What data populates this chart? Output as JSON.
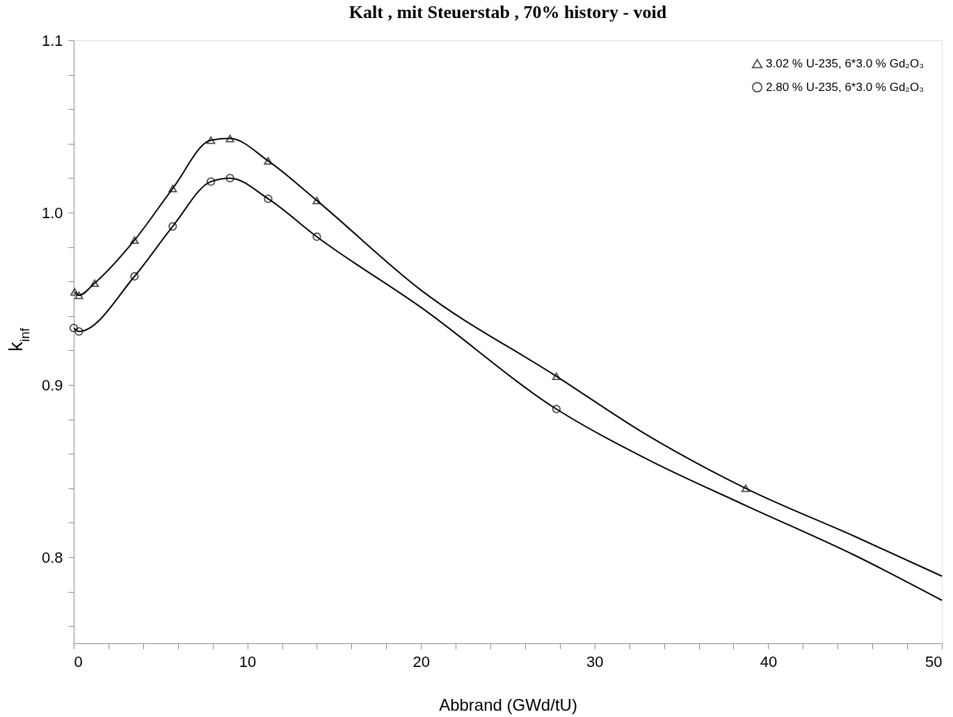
{
  "chart_data": {
    "type": "line",
    "title": "Kalt , mit Steuerstab , 70% history - void",
    "xlabel": "Abbrand (GWd/tU)",
    "ylabel": "k$_{inf}$",
    "xlim": [
      0,
      50
    ],
    "ylim": [
      0.75,
      1.1
    ],
    "xticks": [
      0,
      {
        "value": 2,
        "label": null
      },
      {
        "value": 4,
        "label": null
      },
      {
        "value": 6,
        "label": null
      },
      {
        "value": 8,
        "label": null
      },
      10,
      {
        "value": 12,
        "label": null
      },
      {
        "value": 14,
        "label": null
      },
      {
        "value": 16,
        "label": null
      },
      {
        "value": 18,
        "label": null
      },
      20,
      {
        "value": 22,
        "label": null
      },
      {
        "value": 24,
        "label": null
      },
      {
        "value": 26,
        "label": null
      },
      {
        "value": 28,
        "label": null
      },
      30,
      {
        "value": 32,
        "label": null
      },
      {
        "value": 34,
        "label": null
      },
      {
        "value": 36,
        "label": null
      },
      {
        "value": 38,
        "label": null
      },
      40,
      {
        "value": 42,
        "label": null
      },
      {
        "value": 44,
        "label": null
      },
      {
        "value": 46,
        "label": null
      },
      {
        "value": 48,
        "label": null
      },
      50
    ],
    "yticks": [
      {
        "value": 0.76,
        "label": null
      },
      {
        "value": 0.78,
        "label": null
      },
      0.8,
      {
        "value": 0.82,
        "label": null
      },
      {
        "value": 0.84,
        "label": null
      },
      {
        "value": 0.86,
        "label": null
      },
      {
        "value": 0.88,
        "label": null
      },
      0.9,
      {
        "value": 0.92,
        "label": null
      },
      {
        "value": 0.94,
        "label": null
      },
      {
        "value": 0.96,
        "label": null
      },
      {
        "value": 0.98,
        "label": null
      },
      {
        "value": 1,
        "label": "1.0"
      },
      {
        "value": 1.02,
        "label": null
      },
      {
        "value": 1.04,
        "label": null
      },
      {
        "value": 1.06,
        "label": null
      },
      {
        "value": 1.08,
        "label": null
      },
      1.1
    ],
    "grid": false,
    "legend": "top right",
    "line_style": "solid",
    "series": [
      {
        "type": "scatter",
        "name": "3.02 % U-235, 6*3.0 % Gd₂O₃",
        "color": "#000000",
        "marker": "triangle",
        "x": [
          0.05,
          0.3,
          1.2,
          3.5,
          5.7,
          7.9,
          9.0,
          11.2,
          14.0,
          27.8,
          38.7
        ],
        "values": [
          0.954,
          0.952,
          0.959,
          0.984,
          1.014,
          1.042,
          1.043,
          1.03,
          1.007,
          0.905,
          0.84
        ]
      },
      {
        "type": "scatter",
        "name": "2.80 % U-235, 6*3.0 % Gd₂O₃",
        "color": "#000000",
        "marker": "circle",
        "x": [
          0.0,
          0.3,
          3.5,
          5.7,
          7.9,
          9.0,
          11.2,
          14.0,
          27.8
        ],
        "values": [
          0.933,
          0.931,
          0.963,
          0.992,
          1.018,
          1.02,
          1.008,
          0.986,
          0.886
        ]
      },
      {
        "color": "#000000",
        "x": [
          0.05,
          0.3,
          1.2,
          3.5,
          5.7,
          7.9,
          9.0,
          11.2,
          14.0,
          20,
          27.8,
          33,
          38.7,
          45,
          50
        ],
        "values": [
          0.954,
          0.952,
          0.959,
          0.984,
          1.014,
          1.042,
          1.043,
          1.03,
          1.007,
          0.955,
          0.905,
          0.871,
          0.84,
          0.812,
          0.789
        ]
      },
      {
        "color": "#000000",
        "x": [
          0.0,
          0.3,
          3.5,
          5.7,
          7.9,
          9.0,
          11.2,
          14.0,
          20,
          27.8,
          33,
          38.7,
          45,
          50
        ],
        "values": [
          0.933,
          0.931,
          0.963,
          0.992,
          1.018,
          1.02,
          1.008,
          0.986,
          0.945,
          0.886,
          0.857,
          0.83,
          0.801,
          0.775
        ]
      }
    ]
  }
}
